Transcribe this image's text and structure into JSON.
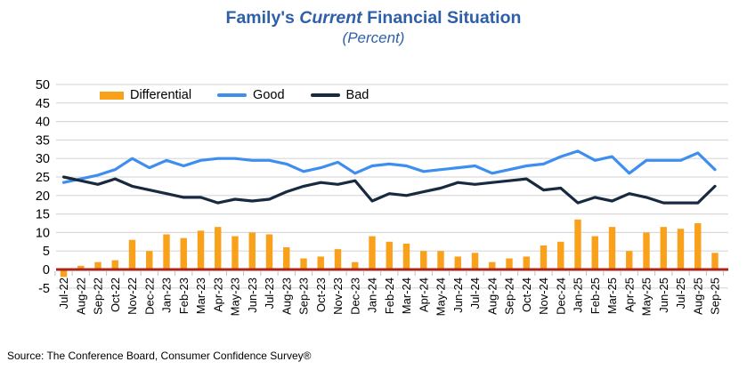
{
  "header": {
    "title_prefix": "Family's",
    "title_italic": "Current",
    "title_suffix": "Financial Situation",
    "subtitle": "(Percent)"
  },
  "legend": {
    "items": [
      {
        "label": "Differential",
        "color": "#F9A11B",
        "type": "bar"
      },
      {
        "label": "Good",
        "color": "#3E8EF0",
        "type": "line"
      },
      {
        "label": "Bad",
        "color": "#182A40",
        "type": "line"
      }
    ]
  },
  "footer": {
    "source": "Source: The Conference Board, Consumer Confidence Survey®"
  },
  "chart_data": {
    "type": "combo",
    "title": "Family's Current Financial Situation",
    "subtitle": "(Percent)",
    "xlabel": "",
    "ylabel": "",
    "ylim": [
      -5,
      50
    ],
    "yticks": [
      50,
      45,
      40,
      35,
      30,
      25,
      20,
      15,
      10,
      5,
      0,
      -5
    ],
    "grid": true,
    "gridline_color": "#D9D9D9",
    "zero_line_color": "#AE2418",
    "tick_color": "#BFBFBF",
    "legend_position": "top-left",
    "categories": [
      "Jul-22",
      "Aug-22",
      "Sep-22",
      "Oct-22",
      "Nov-22",
      "Dec-22",
      "Jan-23",
      "Feb-23",
      "Mar-23",
      "Apr-23",
      "May-23",
      "Jun-23",
      "Jul-23",
      "Aug-23",
      "Sep-23",
      "Oct-23",
      "Nov-23",
      "Dec-23",
      "Jan-24",
      "Feb-24",
      "Mar-24",
      "Apr-24",
      "May-24",
      "Jun-24",
      "Jul-24",
      "Aug-24",
      "Sep-24",
      "Oct-24",
      "Nov-24",
      "Dec-24",
      "Jan-25",
      "Feb-25",
      "Mar-25",
      "Apr-25",
      "May-25",
      "Jun-25",
      "Jul-25",
      "Aug-25",
      "Sep-25"
    ],
    "series": [
      {
        "name": "Differential",
        "type": "bar",
        "color": "#F9A11B",
        "values": [
          -2,
          1,
          2,
          2.5,
          8,
          5,
          9.5,
          8.5,
          10.5,
          11.5,
          9,
          10,
          9.5,
          6,
          3,
          3.5,
          5.5,
          2,
          9,
          7.5,
          7,
          5,
          5,
          3.5,
          4.5,
          2,
          3,
          3.5,
          6.5,
          7.5,
          13.5,
          9,
          11.5,
          5,
          10,
          11.5,
          11,
          12.5,
          4.5
        ]
      },
      {
        "name": "Good",
        "type": "line",
        "color": "#3E8EF0",
        "values": [
          23.5,
          24.5,
          25.5,
          27,
          30,
          27.5,
          29.5,
          28,
          29.5,
          30,
          30,
          29.5,
          29.5,
          28.5,
          26.5,
          27.5,
          29,
          26,
          28,
          28.5,
          28,
          26.5,
          27,
          27.5,
          28,
          26,
          27,
          28,
          28.5,
          30.5,
          32,
          29.5,
          30.5,
          26,
          29.5,
          29.5,
          29.5,
          31.5,
          27
        ]
      },
      {
        "name": "Bad",
        "type": "line",
        "color": "#182A40",
        "values": [
          25,
          24,
          23,
          24.5,
          22.5,
          21.5,
          20.5,
          19.5,
          19.5,
          18,
          19,
          18.5,
          19,
          21,
          22.5,
          23.5,
          23,
          24,
          18.5,
          20.5,
          20,
          21,
          22,
          23.5,
          23,
          23.5,
          24,
          24.5,
          21.5,
          22,
          18,
          19.5,
          18.5,
          20.5,
          19.5,
          18,
          18,
          18,
          22.5
        ]
      }
    ]
  }
}
